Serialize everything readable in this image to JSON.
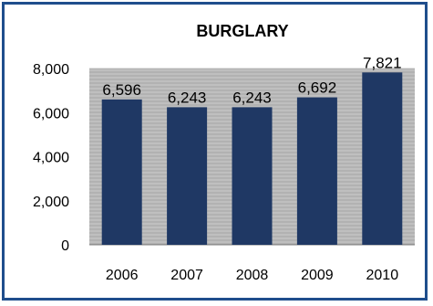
{
  "chart_data": {
    "type": "bar",
    "title": "BURGLARY",
    "categories": [
      "2006",
      "2007",
      "2008",
      "2009",
      "2010"
    ],
    "values": [
      6596,
      6243,
      6243,
      6692,
      7821
    ],
    "value_labels": [
      "6,596",
      "6,243",
      "6,243",
      "6,692",
      "7,821"
    ],
    "ylim": [
      0,
      8000
    ],
    "yticks": [
      0,
      2000,
      4000,
      6000,
      8000
    ],
    "ytick_labels": [
      "0",
      "2,000",
      "4,000",
      "6,000",
      "8,000"
    ],
    "xlabel": "",
    "ylabel": "",
    "grid": true,
    "colors": {
      "bar": "#1f3864",
      "plot_bg": "#bfbfbf",
      "gridline": "#8c8c8c",
      "border": "#1f4e8c"
    }
  }
}
